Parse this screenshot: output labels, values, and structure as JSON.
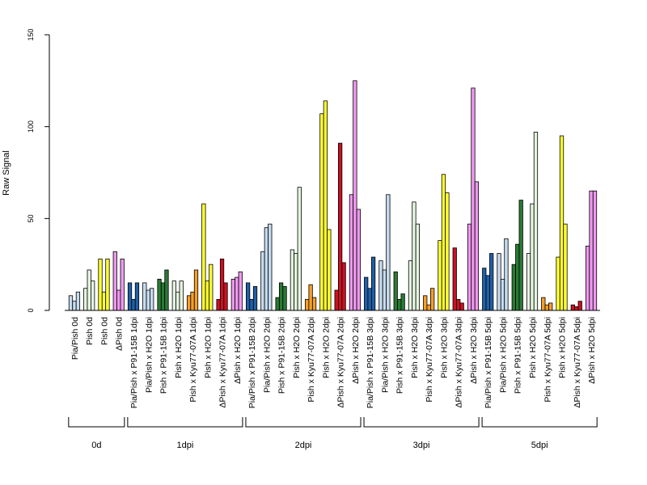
{
  "chart_data": {
    "type": "bar",
    "ylabel": "Raw Signal",
    "xlabel": "",
    "ylim": [
      0,
      150
    ],
    "yticks": [
      0,
      50,
      100,
      150
    ],
    "grid": false,
    "legend": "none",
    "colors": {
      "Pia/Pish": "#c6dbef",
      "Pish": "#f7fcf5",
      "Pish yellow": "#ffff33",
      "ΔPish": "#ee99ee",
      "Pia/Pish x P91-15B": "#2060a8",
      "Pia/Pish x H2O": "#c6dbef",
      "Pish x P91-15B": "#2a7a35",
      "Pish x H2O": "#e5f5e0",
      "Pish x Kyu77-07A": "#f5a02a",
      "Pish x H2O yellow": "#ffff33",
      "ΔPish x Kyu77-07A": "#cc1122",
      "ΔPish x H2O": "#ee99ee"
    },
    "categories": [
      "Pia/Pish 0d",
      "Pish 0d",
      "Pish 0d",
      "ΔPish 0d",
      "Pia/Pish x P91-15B 1dpi",
      "Pia/Pish x H2O 1dpi",
      "Pish x P91-15B 1dpi",
      "Pish x H2O 1dpi",
      "Pish x Kyu77-07A 1dpi",
      "Pish x H2O 1dpi",
      "ΔPish x Kyu77-07A 1dpi",
      "ΔPish x H2O 1dpi",
      "Pia/Pish x P91-15B 2dpi",
      "Pia/Pish x H2O 2dpi",
      "Pish x P91-15B 2dpi",
      "Pish x H2O 2dpi",
      "Pish x Kyu77-07A 2dpi",
      "Pish x H2O 2dpi",
      "ΔPish x Kyu77-07A 2dpi",
      "ΔPish x H2O 2dpi",
      "Pia/Pish x P91-15B 3dpi",
      "Pia/Pish x H2O 3dpi",
      "Pish x P91-15B 3dpi",
      "Pish x H2O 3dpi",
      "Pish x Kyu77-07A 3dpi",
      "Pish x H2O 3dpi",
      "ΔPish x Kyu77-07A 3dpi",
      "ΔPish x H2O 3dpi",
      "Pia/Pish x P91-15B 5dpi",
      "Pia/Pish x H2O 5dpi",
      "Pish x P91-15B 5dpi",
      "Pish x H2O 5dpi",
      "Pish x Kyu77-07A 5dpi",
      "Pish x H2O 5dpi",
      "ΔPish x Kyu77-07A 5dpi",
      "ΔPish x H2O 5dpi"
    ],
    "category_colors": [
      "#c6dbef",
      "#e5f5e0",
      "#ffff33",
      "#ee99ee",
      "#2060a8",
      "#c6dbef",
      "#2a7a35",
      "#e5f5e0",
      "#f5a02a",
      "#ffff33",
      "#cc1122",
      "#ee99ee",
      "#2060a8",
      "#c6dbef",
      "#2a7a35",
      "#e5f5e0",
      "#f5a02a",
      "#ffff33",
      "#cc1122",
      "#ee99ee",
      "#2060a8",
      "#c6dbef",
      "#2a7a35",
      "#e5f5e0",
      "#f5a02a",
      "#ffff33",
      "#cc1122",
      "#ee99ee",
      "#2060a8",
      "#c6dbef",
      "#2a7a35",
      "#e5f5e0",
      "#f5a02a",
      "#ffff33",
      "#cc1122",
      "#ee99ee"
    ],
    "values": [
      [
        8,
        5,
        10
      ],
      [
        12,
        22,
        16
      ],
      [
        28,
        10,
        28
      ],
      [
        32,
        11,
        28
      ],
      [
        15,
        6,
        15
      ],
      [
        15,
        11,
        12
      ],
      [
        17,
        15,
        22
      ],
      [
        16,
        10,
        16
      ],
      [
        8,
        10,
        22
      ],
      [
        58,
        16,
        25
      ],
      [
        6,
        28,
        15
      ],
      [
        17,
        18,
        21
      ],
      [
        15,
        6,
        13
      ],
      [
        32,
        45,
        47
      ],
      [
        7,
        15,
        13
      ],
      [
        33,
        31,
        67
      ],
      [
        6,
        14,
        7
      ],
      [
        107,
        114,
        44
      ],
      [
        11,
        91,
        26
      ],
      [
        63,
        125,
        55
      ],
      [
        18,
        12,
        29
      ],
      [
        27,
        22,
        63
      ],
      [
        21,
        6,
        9
      ],
      [
        27,
        59,
        47
      ],
      [
        8,
        3,
        12
      ],
      [
        38,
        74,
        64
      ],
      [
        34,
        6,
        4
      ],
      [
        47,
        121,
        70
      ],
      [
        23,
        19,
        31
      ],
      [
        31,
        17,
        39
      ],
      [
        25,
        36,
        60
      ],
      [
        31,
        58,
        97
      ],
      [
        7,
        3,
        4
      ],
      [
        29,
        95,
        47
      ],
      [
        3,
        2,
        5
      ],
      [
        35,
        65,
        65
      ]
    ],
    "groups": [
      {
        "label": "0d",
        "count": 4
      },
      {
        "label": "1dpi",
        "count": 8
      },
      {
        "label": "2dpi",
        "count": 8
      },
      {
        "label": "3dpi",
        "count": 8
      },
      {
        "label": "5dpi",
        "count": 8
      }
    ]
  }
}
